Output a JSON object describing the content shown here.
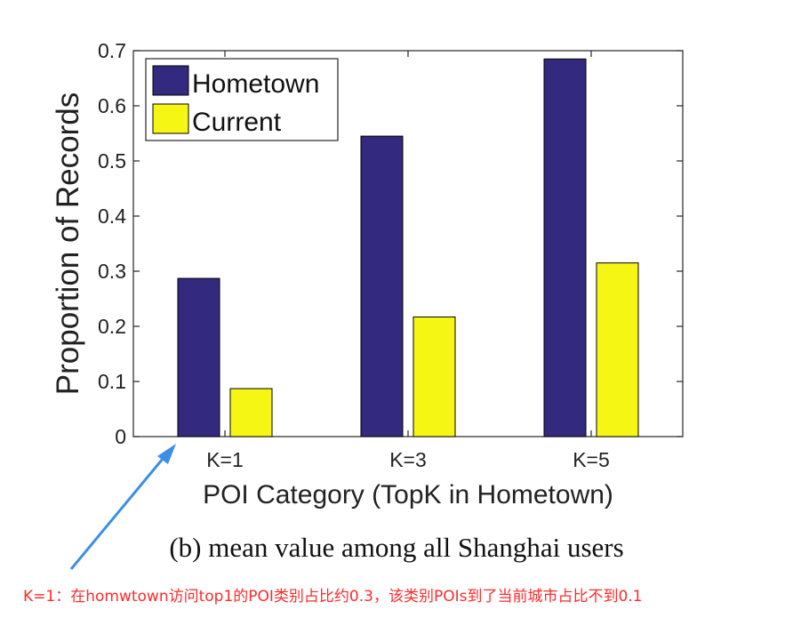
{
  "chart_data": {
    "type": "bar",
    "title": "",
    "xlabel": "POI Category (TopK in Hometown)",
    "ylabel": "Proportion of Records",
    "categories": [
      "K=1",
      "K=3",
      "K=5"
    ],
    "series": [
      {
        "name": "Hometown",
        "color": "#332a7f",
        "values": [
          0.287,
          0.545,
          0.685
        ]
      },
      {
        "name": "Current",
        "color": "#f6f614",
        "values": [
          0.087,
          0.217,
          0.315
        ]
      }
    ],
    "ylim": [
      0,
      0.7
    ],
    "yticks": [
      "0",
      "0.1",
      "0.2",
      "0.3",
      "0.4",
      "0.5",
      "0.6",
      "0.7"
    ],
    "grid": false,
    "legend_position": "top-left",
    "annotation_arrow_color": "#3a8fe6"
  },
  "caption": "(b)  mean value among all Shanghai users",
  "annotation_note": "K=1：在homwtown访问top1的POI类别占比约0.3，该类别POIs到了当前城市占比不到0.1"
}
